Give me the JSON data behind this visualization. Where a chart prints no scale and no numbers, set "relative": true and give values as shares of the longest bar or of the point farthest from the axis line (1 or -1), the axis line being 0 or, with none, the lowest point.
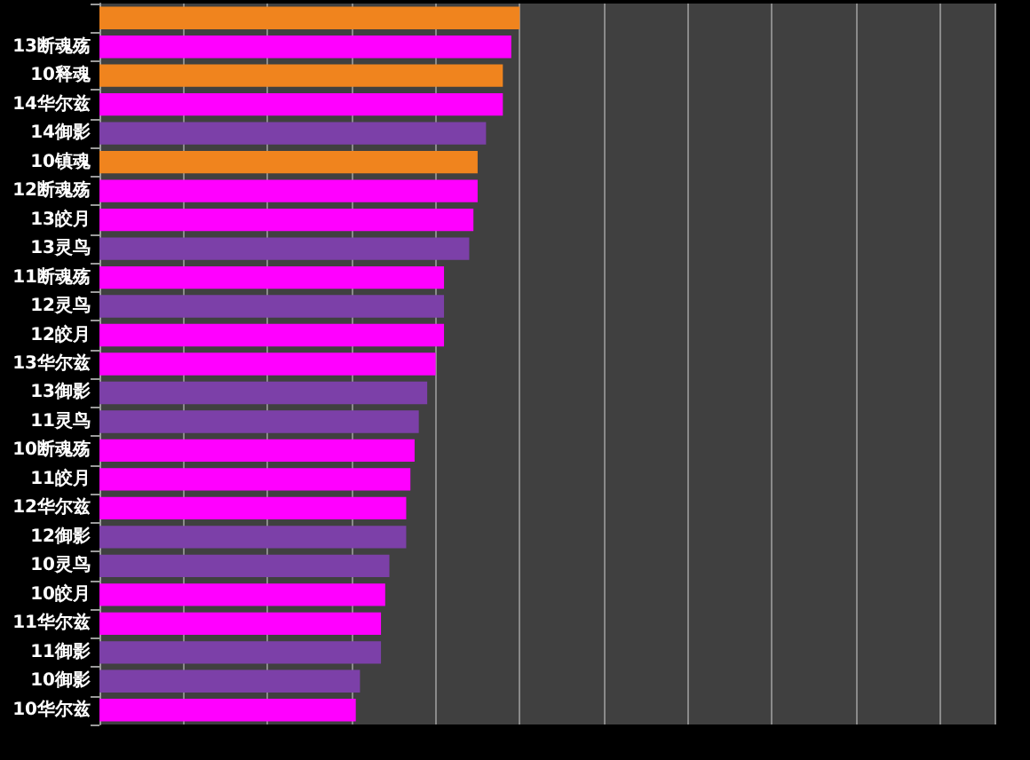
{
  "chart_data": {
    "type": "bar",
    "orientation": "horizontal",
    "relative": true,
    "categories": [
      null,
      "13断魂殇",
      "10释魂",
      "14华尔兹",
      "14御影",
      "10镇魂",
      "12断魂殇",
      "13皎月",
      "13灵鸟",
      "11断魂殇",
      "12灵鸟",
      "12皎月",
      "13华尔兹",
      "13御影",
      "11灵鸟",
      "10断魂殇",
      "11皎月",
      "12华尔兹",
      "12御影",
      "10灵鸟",
      "10皎月",
      "11华尔兹",
      "11御影",
      "10御影",
      "10华尔兹"
    ],
    "values": [
      1,
      0.98,
      0.96,
      0.96,
      0.92,
      0.9,
      0.9,
      0.89,
      0.88,
      0.82,
      0.82,
      0.82,
      0.8,
      0.78,
      0.76,
      0.75,
      0.74,
      0.73,
      0.73,
      0.69,
      0.68,
      0.67,
      0.67,
      0.62,
      0.61
    ],
    "colors": [
      "#f0841e",
      "#ff00ff",
      "#f0841e",
      "#ff00ff",
      "#7c40a8",
      "#f0841e",
      "#ff00ff",
      "#ff00ff",
      "#7c40a8",
      "#ff00ff",
      "#7c40a8",
      "#ff00ff",
      "#ff00ff",
      "#7c40a8",
      "#7c40a8",
      "#ff00ff",
      "#ff00ff",
      "#ff00ff",
      "#7c40a8",
      "#7c40a8",
      "#ff00ff",
      "#ff00ff",
      "#7c40a8",
      "#7c40a8",
      "#ff00ff"
    ],
    "grid": "x"
  }
}
